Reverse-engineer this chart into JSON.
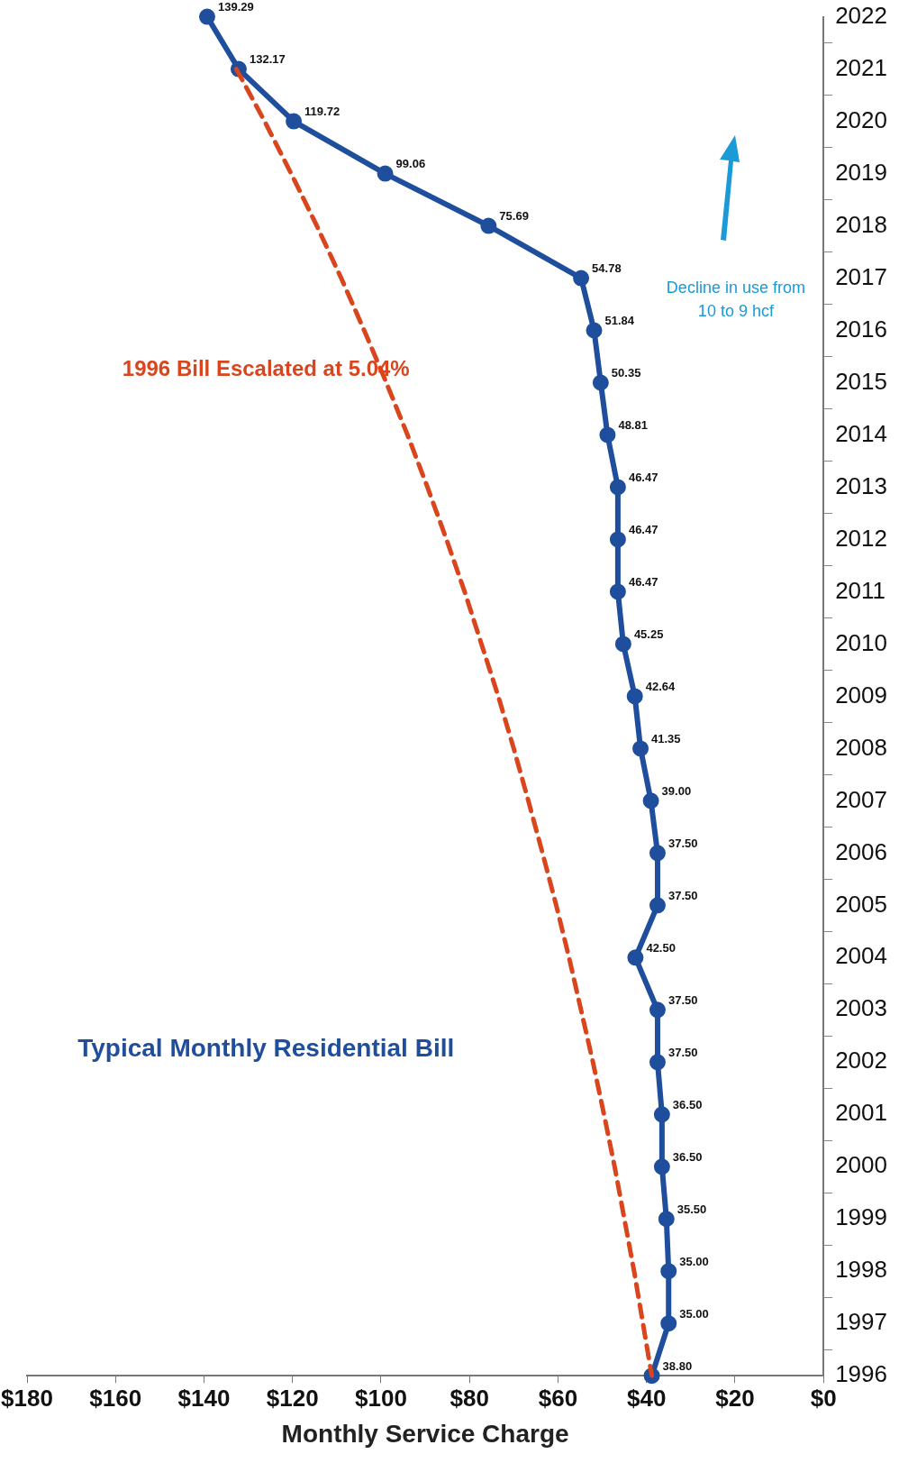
{
  "chart_data": {
    "type": "line",
    "orientation": "horizontal",
    "xlabel": "Monthly Service Charge",
    "categories": [
      "2022",
      "2021",
      "2020",
      "2019",
      "2018",
      "2017",
      "2016",
      "2015",
      "2014",
      "2013",
      "2012",
      "2011",
      "2010",
      "2009",
      "2008",
      "2007",
      "2006",
      "2005",
      "2004",
      "2003",
      "2002",
      "2001",
      "2000",
      "1999",
      "1998",
      "1997",
      "1996"
    ],
    "series": [
      {
        "name": "1996 Bill Escalated at 5.04%",
        "color": "#d9461e",
        "line_style": "dashed",
        "marker": "none",
        "values": [
          null,
          132.7,
          126.3,
          120.3,
          114.5,
          109.0,
          103.8,
          98.8,
          94.0,
          89.5,
          85.2,
          81.1,
          77.3,
          73.5,
          70.0,
          66.7,
          63.5,
          60.4,
          57.5,
          54.8,
          52.1,
          49.6,
          47.2,
          45.0,
          42.8,
          40.8,
          38.8
        ]
      },
      {
        "name": "Typical Monthly Residential Bill",
        "color": "#1f4e9c",
        "line_style": "solid",
        "marker": "circle",
        "values": [
          139.29,
          132.17,
          119.72,
          99.06,
          75.69,
          54.78,
          51.84,
          50.35,
          48.81,
          46.47,
          46.47,
          46.47,
          45.25,
          42.64,
          41.35,
          39.0,
          37.5,
          37.5,
          42.5,
          37.5,
          37.5,
          36.5,
          36.5,
          35.5,
          35.0,
          35.0,
          38.8
        ],
        "value_labels": [
          "139.29",
          "132.17",
          "119.72",
          "99.06",
          "75.69",
          "54.78",
          "51.84",
          "50.35",
          "48.81",
          "46.47",
          "46.47",
          "46.47",
          "45.25",
          "42.64",
          "41.35",
          "39.00",
          "37.50",
          "37.50",
          "42.50",
          "37.50",
          "37.50",
          "36.50",
          "36.50",
          "35.50",
          "35.00",
          "35.00",
          "38.80"
        ]
      }
    ],
    "xlim": [
      180,
      0
    ],
    "xticks": [
      {
        "value": 0,
        "label": "$0"
      },
      {
        "value": 20,
        "label": "$20"
      },
      {
        "value": 40,
        "label": "$40"
      },
      {
        "value": 60,
        "label": "$60"
      },
      {
        "value": 80,
        "label": "$80"
      },
      {
        "value": 100,
        "label": "$100"
      },
      {
        "value": 120,
        "label": "$120"
      },
      {
        "value": 140,
        "label": "$140"
      },
      {
        "value": 160,
        "label": "$160"
      },
      {
        "value": 180,
        "label": "$180"
      }
    ],
    "grid": false,
    "legend": false,
    "annotations": [
      "Decline in use from 10 to 9 hcf"
    ]
  }
}
